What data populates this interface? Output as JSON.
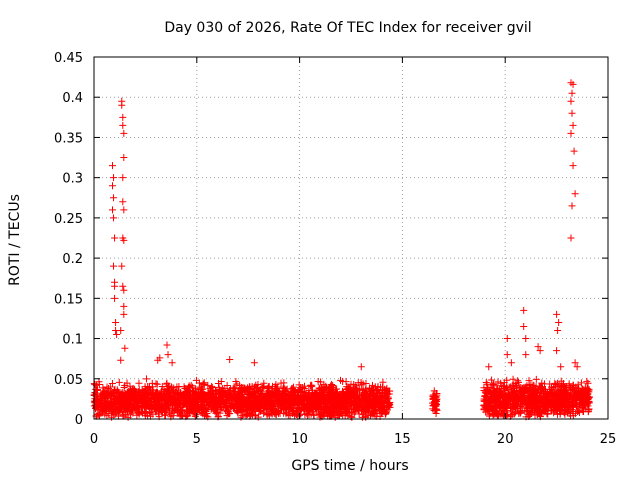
{
  "chart_data": {
    "type": "scatter",
    "title": "Day 030 of 2026, Rate Of TEC Index for receiver gvil",
    "xlabel": "GPS time / hours",
    "ylabel": "ROTI / TECUs",
    "xlim": [
      0,
      25
    ],
    "ylim": [
      0,
      0.45
    ],
    "xticks": [
      0,
      5,
      10,
      15,
      20,
      25
    ],
    "yticks": [
      0,
      0.05,
      0.1,
      0.15,
      0.2,
      0.25,
      0.3,
      0.35,
      0.4,
      0.45
    ],
    "xtick_labels": [
      "0",
      "5",
      "10",
      "15",
      "20",
      "25"
    ],
    "ytick_labels": [
      "0",
      "0.05",
      "0.1",
      "0.15",
      "0.2",
      "0.25",
      "0.3",
      "0.35",
      "0.4",
      "0.45"
    ],
    "grid": true,
    "marker": "+",
    "color": "#ff0000",
    "series": [
      {
        "name": "ROTI",
        "points": [
          [
            0.9,
            0.315
          ],
          [
            0.95,
            0.3
          ],
          [
            0.9,
            0.29
          ],
          [
            0.95,
            0.275
          ],
          [
            0.9,
            0.26
          ],
          [
            0.95,
            0.25
          ],
          [
            1.0,
            0.225
          ],
          [
            0.95,
            0.19
          ],
          [
            1.0,
            0.17
          ],
          [
            1.0,
            0.165
          ],
          [
            1.0,
            0.15
          ],
          [
            1.05,
            0.12
          ],
          [
            1.05,
            0.11
          ],
          [
            1.1,
            0.105
          ],
          [
            1.35,
            0.395
          ],
          [
            1.35,
            0.39
          ],
          [
            1.4,
            0.375
          ],
          [
            1.4,
            0.365
          ],
          [
            1.45,
            0.355
          ],
          [
            1.45,
            0.325
          ],
          [
            1.4,
            0.3
          ],
          [
            1.4,
            0.27
          ],
          [
            1.45,
            0.26
          ],
          [
            1.4,
            0.225
          ],
          [
            1.45,
            0.222
          ],
          [
            1.35,
            0.19
          ],
          [
            1.4,
            0.165
          ],
          [
            1.45,
            0.16
          ],
          [
            1.45,
            0.14
          ],
          [
            1.45,
            0.13
          ],
          [
            1.3,
            0.11
          ],
          [
            1.5,
            0.088
          ],
          [
            1.3,
            0.073
          ],
          [
            3.1,
            0.073
          ],
          [
            3.2,
            0.076
          ],
          [
            3.55,
            0.092
          ],
          [
            3.6,
            0.08
          ],
          [
            3.8,
            0.07
          ],
          [
            6.6,
            0.074
          ],
          [
            7.8,
            0.07
          ],
          [
            13.0,
            0.065
          ],
          [
            16.55,
            0.035
          ],
          [
            16.6,
            0.028
          ],
          [
            16.55,
            0.02
          ],
          [
            16.65,
            0.012
          ],
          [
            19.2,
            0.065
          ],
          [
            20.1,
            0.1
          ],
          [
            20.1,
            0.08
          ],
          [
            20.3,
            0.07
          ],
          [
            20.9,
            0.135
          ],
          [
            20.9,
            0.115
          ],
          [
            21.0,
            0.1
          ],
          [
            21.0,
            0.08
          ],
          [
            21.6,
            0.09
          ],
          [
            21.7,
            0.085
          ],
          [
            22.5,
            0.13
          ],
          [
            22.6,
            0.12
          ],
          [
            22.55,
            0.11
          ],
          [
            22.5,
            0.085
          ],
          [
            22.7,
            0.065
          ],
          [
            23.2,
            0.418
          ],
          [
            23.3,
            0.416
          ],
          [
            23.25,
            0.405
          ],
          [
            23.2,
            0.395
          ],
          [
            23.25,
            0.38
          ],
          [
            23.3,
            0.365
          ],
          [
            23.2,
            0.355
          ],
          [
            23.35,
            0.333
          ],
          [
            23.3,
            0.315
          ],
          [
            23.4,
            0.28
          ],
          [
            23.25,
            0.265
          ],
          [
            23.2,
            0.225
          ],
          [
            23.4,
            0.07
          ],
          [
            23.5,
            0.065
          ]
        ],
        "dense_bands": [
          {
            "x": [
              0.0,
              14.4
            ],
            "y_center": 0.022,
            "y_spread": 0.03
          },
          {
            "x": [
              16.45,
              16.7
            ],
            "y_center": 0.02,
            "y_spread": 0.018
          },
          {
            "x": [
              18.95,
              24.1
            ],
            "y_center": 0.024,
            "y_spread": 0.03
          }
        ]
      }
    ]
  }
}
